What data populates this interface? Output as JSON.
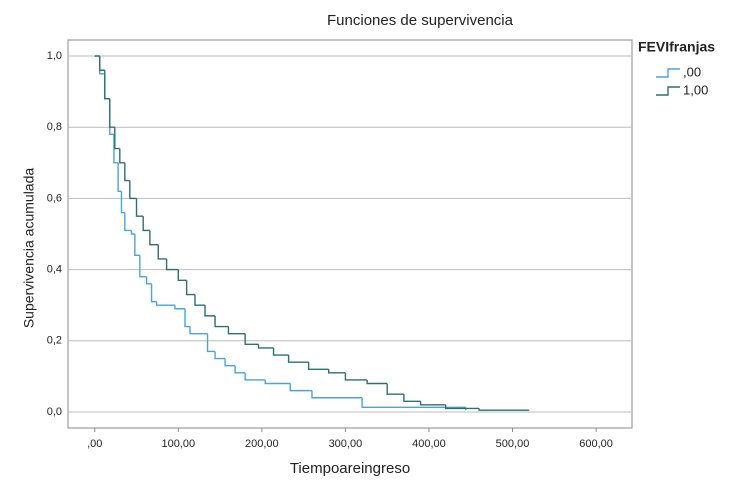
{
  "chart_data": {
    "type": "step",
    "title": "Funciones de supervivencia",
    "x_label": "Tiempoareingreso",
    "y_label": "Supervivencia acumulada",
    "legend_title": "FEVIfranjas",
    "legend_position": "top-right",
    "grid": true,
    "xlim": [
      -32,
      643
    ],
    "ylim": [
      -0.045,
      1.045
    ],
    "xticks": [
      {
        "value": 0,
        "label": ",00"
      },
      {
        "value": 100,
        "label": "100,00"
      },
      {
        "value": 200,
        "label": "200,00"
      },
      {
        "value": 300,
        "label": "300,00"
      },
      {
        "value": 400,
        "label": "400,00"
      },
      {
        "value": 500,
        "label": "500,00"
      },
      {
        "value": 600,
        "label": "600,00"
      }
    ],
    "yticks": [
      {
        "value": 0,
        "label": "0,0"
      },
      {
        "value": 0.2,
        "label": "0,2"
      },
      {
        "value": 0.4,
        "label": "0,4"
      },
      {
        "value": 0.6,
        "label": "0,6"
      },
      {
        "value": 0.8,
        "label": "0,8"
      },
      {
        "value": 1,
        "label": "1,0"
      }
    ],
    "series": [
      {
        "name": ",00",
        "color": "#4aa3dc",
        "x": [
          0,
          6,
          12,
          18,
          23,
          28,
          32,
          36,
          44,
          48,
          54,
          62,
          68,
          74,
          96,
          108,
          114,
          135,
          144,
          156,
          168,
          180,
          204,
          234,
          260,
          320,
          444
        ],
        "values": [
          1.0,
          0.95,
          0.88,
          0.78,
          0.7,
          0.62,
          0.56,
          0.51,
          0.5,
          0.44,
          0.38,
          0.36,
          0.31,
          0.3,
          0.29,
          0.24,
          0.22,
          0.17,
          0.15,
          0.13,
          0.11,
          0.09,
          0.08,
          0.06,
          0.04,
          0.013,
          0.005
        ]
      },
      {
        "name": "1,00",
        "color": "#2e6f73",
        "x": [
          0,
          6,
          12,
          18,
          24,
          30,
          36,
          42,
          50,
          58,
          66,
          76,
          86,
          100,
          110,
          120,
          132,
          144,
          160,
          180,
          196,
          214,
          232,
          256,
          280,
          300,
          326,
          350,
          370,
          390,
          420,
          460,
          520
        ],
        "values": [
          1.0,
          0.96,
          0.88,
          0.8,
          0.74,
          0.7,
          0.65,
          0.6,
          0.55,
          0.51,
          0.47,
          0.43,
          0.4,
          0.37,
          0.33,
          0.3,
          0.27,
          0.24,
          0.22,
          0.19,
          0.18,
          0.16,
          0.14,
          0.12,
          0.11,
          0.09,
          0.08,
          0.05,
          0.03,
          0.02,
          0.01,
          0.005,
          0.005
        ]
      }
    ]
  }
}
